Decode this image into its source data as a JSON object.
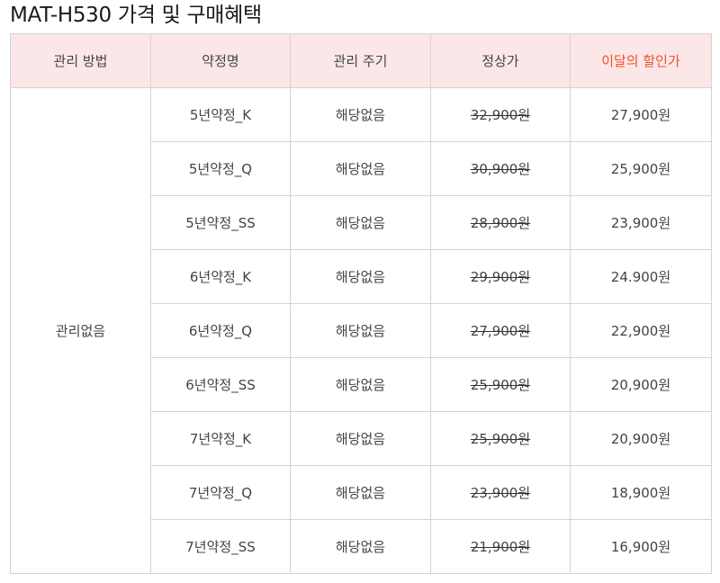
{
  "title": "MAT-H530 가격 및 구매혜택",
  "headers": {
    "method": "관리 방법",
    "contract": "약정명",
    "cycle": "관리 주기",
    "regular": "정상가",
    "discount": "이달의 할인가"
  },
  "method_value": "관리없음",
  "colors": {
    "header_bg": "#fbe7e7",
    "accent": "#f0502d",
    "border": "#d4d4d4"
  },
  "rows": [
    {
      "contract": "5년약정_K",
      "cycle": "해당없음",
      "regular": "32,900원",
      "sale": "27,900원"
    },
    {
      "contract": "5년약정_Q",
      "cycle": "해당없음",
      "regular": "30,900원",
      "sale": "25,900원"
    },
    {
      "contract": "5년약정_SS",
      "cycle": "해당없음",
      "regular": "28,900원",
      "sale": "23,900원"
    },
    {
      "contract": "6년약정_K",
      "cycle": "해당없음",
      "regular": "29,900원",
      "sale": "24.900원"
    },
    {
      "contract": "6년약정_Q",
      "cycle": "해당없음",
      "regular": "27,900원",
      "sale": "22,900원"
    },
    {
      "contract": "6년약정_SS",
      "cycle": "해당없음",
      "regular": "25,900원",
      "sale": "20,900원"
    },
    {
      "contract": "7년약정_K",
      "cycle": "해당없음",
      "regular": "25,900원",
      "sale": "20,900원"
    },
    {
      "contract": "7년약정_Q",
      "cycle": "해당없음",
      "regular": "23,900원",
      "sale": "18,900원"
    },
    {
      "contract": "7년약정_SS",
      "cycle": "해당없음",
      "regular": "21,900원",
      "sale": "16,900원"
    }
  ]
}
